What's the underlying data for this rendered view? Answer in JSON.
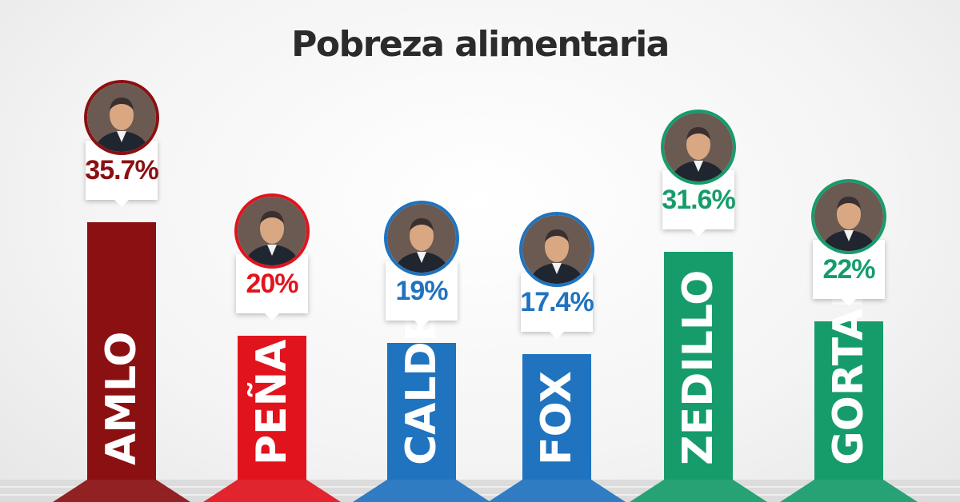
{
  "chart_data": {
    "type": "bar",
    "title": "Pobreza alimentaria",
    "categories": [
      "AMLO",
      "PEÑA",
      "CALDERÓN",
      "FOX",
      "ZEDILLO",
      "GORTARI"
    ],
    "values": [
      35.7,
      20,
      19,
      17.4,
      31.6,
      22
    ],
    "value_labels": [
      "35.7%",
      "20%",
      "19%",
      "17.4%",
      "31.6%",
      "22%"
    ],
    "colors": [
      "#8b1012",
      "#e1141d",
      "#1f73bf",
      "#1f73bf",
      "#169c6b",
      "#169c6b"
    ],
    "ylim": [
      0,
      40
    ],
    "grid": false,
    "legend": "none"
  }
}
